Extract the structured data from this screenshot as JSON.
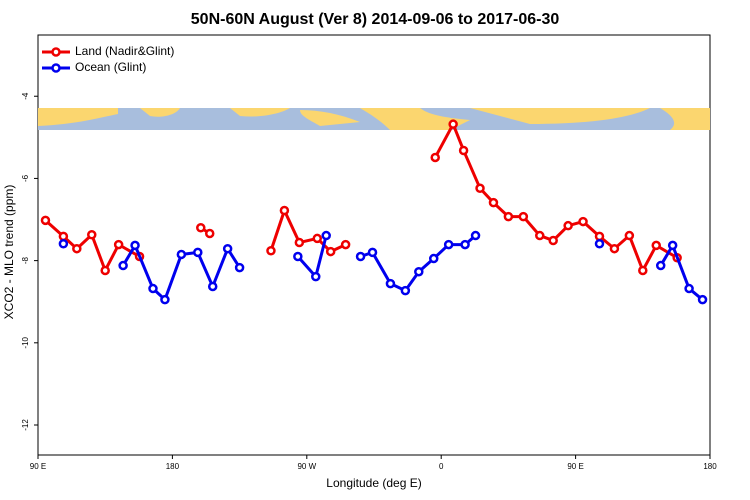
{
  "chart_data": {
    "type": "line",
    "title": "50N-60N August (Ver 8)   2014-09-06 to 2017-06-30",
    "x_label": "Longitude (deg E)",
    "y_label": "XCO2 - MLO trend (ppm)",
    "xlim": [
      90,
      540
    ],
    "ylim": [
      -12.73,
      -2.51
    ],
    "xticks": [
      {
        "value": 90,
        "label": "90 E"
      },
      {
        "value": 180,
        "label": "180"
      },
      {
        "value": 270,
        "label": "90 W"
      },
      {
        "value": 360,
        "label": "0"
      },
      {
        "value": 450,
        "label": "90 E"
      },
      {
        "value": 540,
        "label": "180"
      }
    ],
    "yticks": [
      -4,
      -6,
      -8,
      -10,
      -12
    ],
    "legend": "top-left",
    "series": [
      {
        "name": "Land (Nadir&Glint)",
        "color": "#ee0000",
        "x": [
          95,
          107,
          116,
          126,
          135,
          144,
          158,
          null,
          199,
          205,
          null,
          246,
          255,
          265,
          277,
          286,
          296,
          null,
          356,
          368,
          375,
          386,
          395,
          405,
          415,
          426,
          435,
          445,
          455,
          466,
          476,
          486,
          495,
          504,
          518
        ],
        "values": [
          -7.02,
          -7.41,
          -7.71,
          -7.37,
          -8.24,
          -7.61,
          -7.9,
          null,
          -7.2,
          -7.34,
          null,
          -7.76,
          -6.78,
          -7.56,
          -7.46,
          -7.78,
          -7.61,
          null,
          -5.49,
          -4.68,
          -5.32,
          -6.24,
          -6.59,
          -6.93,
          -6.93,
          -7.39,
          -7.51,
          -7.15,
          -7.05,
          -7.41,
          -7.71,
          -7.39,
          -8.24,
          -7.63,
          -7.93
        ]
      },
      {
        "name": "Ocean (Glint)",
        "color": "#0000ee",
        "x": [
          107,
          null,
          147,
          155,
          167,
          175,
          186,
          197,
          207,
          217,
          225,
          null,
          264,
          276,
          283,
          null,
          306,
          314,
          326,
          336,
          345,
          355,
          365,
          376,
          383,
          null,
          466,
          null,
          507,
          515,
          526,
          535
        ],
        "values": [
          -7.59,
          null,
          -8.12,
          -7.63,
          -8.68,
          -8.95,
          -7.85,
          -7.8,
          -8.63,
          -7.71,
          -8.17,
          null,
          -7.9,
          -8.39,
          -7.39,
          null,
          -7.9,
          -7.8,
          -8.56,
          -8.73,
          -8.27,
          -7.95,
          -7.61,
          -7.61,
          -7.39,
          null,
          -7.59,
          null,
          -8.12,
          -7.63,
          -8.68,
          -8.95
        ]
      }
    ]
  }
}
